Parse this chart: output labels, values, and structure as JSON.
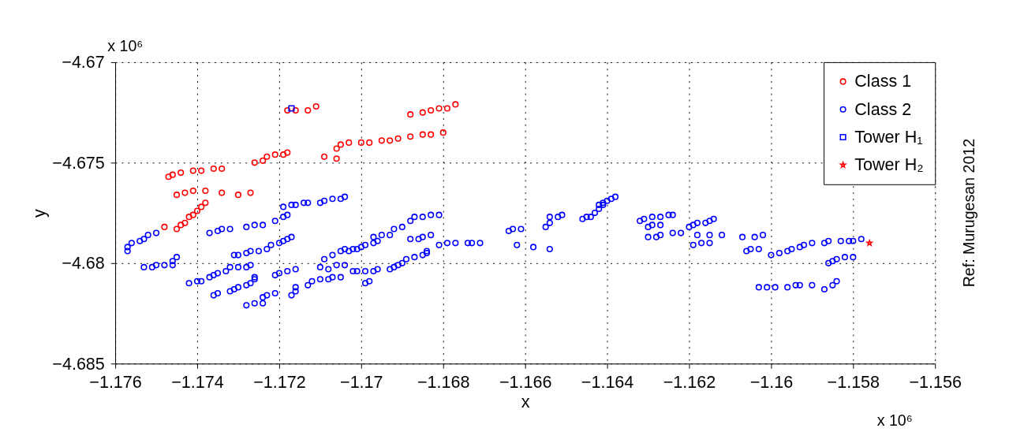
{
  "chart_data": {
    "type": "scatter",
    "xlabel": "x",
    "ylabel": "y",
    "xlim": [
      -1.176,
      -1.156
    ],
    "xticks": [
      -1.176,
      -1.174,
      -1.172,
      -1.17,
      -1.168,
      -1.166,
      -1.164,
      -1.162,
      -1.16,
      -1.158,
      -1.156
    ],
    "ylim": [
      -4.685,
      -4.67
    ],
    "yticks": [
      -4.685,
      -4.68,
      -4.675,
      -4.67
    ],
    "grid": true,
    "legend": "top right",
    "annotations": [
      "x 10⁶",
      "x 10⁶",
      "Ref: Murugesan 2012"
    ],
    "series": [
      {
        "name": "Class 1",
        "color": "#ff0000",
        "marker": "circle",
        "x": [
          -1.1718,
          -1.1716,
          -1.1713,
          -1.1711,
          -1.1688,
          -1.1685,
          -1.1683,
          -1.1681,
          -1.1679,
          -1.1677,
          -1.1726,
          -1.1724,
          -1.1723,
          -1.1721,
          -1.1719,
          -1.1718,
          -1.1709,
          -1.1706,
          -1.1706,
          -1.1705,
          -1.1703,
          -1.17,
          -1.1698,
          -1.1695,
          -1.1693,
          -1.1691,
          -1.1688,
          -1.1685,
          -1.1683,
          -1.168,
          -1.1747,
          -1.1746,
          -1.1744,
          -1.1741,
          -1.1739,
          -1.1736,
          -1.1734,
          -1.1745,
          -1.1743,
          -1.1741,
          -1.1738,
          -1.1734,
          -1.173,
          -1.1727,
          -1.1748,
          -1.1745,
          -1.1744,
          -1.1743,
          -1.1742,
          -1.1741,
          -1.174,
          -1.1739,
          -1.1738
        ],
        "values": [
          -4.6724,
          -4.6724,
          -4.6724,
          -4.6722,
          -4.6726,
          -4.6725,
          -4.6724,
          -4.6723,
          -4.6723,
          -4.6721,
          -4.675,
          -4.6749,
          -4.6747,
          -4.6746,
          -4.6746,
          -4.6745,
          -4.6747,
          -4.6748,
          -4.6743,
          -4.6741,
          -4.674,
          -4.674,
          -4.674,
          -4.6739,
          -4.6739,
          -4.6738,
          -4.6737,
          -4.6736,
          -4.6736,
          -4.6735,
          -4.6757,
          -4.6756,
          -4.6755,
          -4.6754,
          -4.6754,
          -4.6753,
          -4.6753,
          -4.6766,
          -4.6765,
          -4.6764,
          -4.6764,
          -4.6765,
          -4.6766,
          -4.6765,
          -4.6782,
          -4.6783,
          -4.6781,
          -4.678,
          -4.6777,
          -4.6776,
          -4.6774,
          -4.6772,
          -4.677
        ]
      },
      {
        "name": "Class 2",
        "color": "#0000ff",
        "marker": "circle",
        "x": [
          -1.1757,
          -1.1757,
          -1.1756,
          -1.1754,
          -1.1753,
          -1.1752,
          -1.175,
          -1.1753,
          -1.1751,
          -1.175,
          -1.1748,
          -1.1746,
          -1.1746,
          -1.1745,
          -1.1742,
          -1.174,
          -1.1739,
          -1.1737,
          -1.1736,
          -1.1735,
          -1.1733,
          -1.1732,
          -1.173,
          -1.1728,
          -1.1727,
          -1.1736,
          -1.1735,
          -1.1732,
          -1.1731,
          -1.173,
          -1.1728,
          -1.1727,
          -1.1726,
          -1.1726,
          -1.1728,
          -1.1726,
          -1.1724,
          -1.1724,
          -1.1723,
          -1.1721,
          -1.1717,
          -1.1716,
          -1.1716,
          -1.1713,
          -1.1712,
          -1.171,
          -1.1708,
          -1.1707,
          -1.1705,
          -1.1721,
          -1.172,
          -1.1718,
          -1.1716,
          -1.171,
          -1.1708,
          -1.1706,
          -1.1704,
          -1.1702,
          -1.1709,
          -1.1707,
          -1.1705,
          -1.1704,
          -1.1702,
          -1.1731,
          -1.173,
          -1.1728,
          -1.1727,
          -1.1725,
          -1.1723,
          -1.1722,
          -1.172,
          -1.1719,
          -1.1718,
          -1.1717,
          -1.1737,
          -1.1735,
          -1.1734,
          -1.1732,
          -1.1728,
          -1.1726,
          -1.1724,
          -1.1721,
          -1.1719,
          -1.1718,
          -1.1719,
          -1.1717,
          -1.1716,
          -1.1714,
          -1.1713,
          -1.171,
          -1.1709,
          -1.1707,
          -1.1705,
          -1.1704,
          -1.1703,
          -1.1701,
          -1.17,
          -1.1699,
          -1.1697,
          -1.1697,
          -1.1696,
          -1.1695,
          -1.1693,
          -1.1692,
          -1.169,
          -1.1688,
          -1.1687,
          -1.1685,
          -1.1683,
          -1.1681,
          -1.1688,
          -1.1686,
          -1.1685,
          -1.1683,
          -1.1701,
          -1.1699,
          -1.1697,
          -1.1696,
          -1.1693,
          -1.1692,
          -1.1691,
          -1.169,
          -1.1689,
          -1.1687,
          -1.1685,
          -1.1684,
          -1.1684,
          -1.1699,
          -1.1698,
          -1.1681,
          -1.1679,
          -1.1677,
          -1.1674,
          -1.1673,
          -1.1671,
          -1.1664,
          -1.1663,
          -1.1661,
          -1.1662,
          -1.1658,
          -1.1654,
          -1.1655,
          -1.1654,
          -1.1654,
          -1.1652,
          -1.1651,
          -1.1646,
          -1.1645,
          -1.1644,
          -1.1643,
          -1.1642,
          -1.1642,
          -1.1641,
          -1.1641,
          -1.164,
          -1.1639,
          -1.1638,
          -1.1632,
          -1.1631,
          -1.1629,
          -1.1627,
          -1.1625,
          -1.1624,
          -1.163,
          -1.1629,
          -1.1627,
          -1.163,
          -1.1628,
          -1.1627,
          -1.1624,
          -1.1622,
          -1.162,
          -1.1619,
          -1.1618,
          -1.1616,
          -1.1615,
          -1.1614,
          -1.1618,
          -1.1615,
          -1.1612,
          -1.1619,
          -1.1617,
          -1.1615,
          -1.1607,
          -1.1604,
          -1.1602,
          -1.1606,
          -1.1605,
          -1.1603,
          -1.16,
          -1.1598,
          -1.1596,
          -1.1595,
          -1.1593,
          -1.1592,
          -1.159,
          -1.1587,
          -1.1586,
          -1.1583,
          -1.1581,
          -1.158,
          -1.1578,
          -1.1586,
          -1.1585,
          -1.1584,
          -1.1582,
          -1.158,
          -1.1603,
          -1.1601,
          -1.1599,
          -1.1596,
          -1.1594,
          -1.1593,
          -1.159,
          -1.1587,
          -1.1585,
          -1.1584
        ],
        "values": [
          -4.6794,
          -4.6792,
          -4.679,
          -4.6789,
          -4.6788,
          -4.6786,
          -4.6785,
          -4.6802,
          -4.6802,
          -4.6801,
          -4.6801,
          -4.6801,
          -4.6799,
          -4.6797,
          -4.681,
          -4.6809,
          -4.6809,
          -4.6807,
          -4.6806,
          -4.6805,
          -4.6804,
          -4.6802,
          -4.6802,
          -4.6802,
          -4.6801,
          -4.6816,
          -4.6815,
          -4.6814,
          -4.6813,
          -4.6812,
          -4.6811,
          -4.681,
          -4.6808,
          -4.6807,
          -4.6821,
          -4.682,
          -4.682,
          -4.6817,
          -4.6816,
          -4.6815,
          -4.6816,
          -4.6814,
          -4.6812,
          -4.6811,
          -4.6809,
          -4.6808,
          -4.6808,
          -4.6807,
          -4.6807,
          -4.6806,
          -4.6805,
          -4.6804,
          -4.6803,
          -4.6802,
          -4.6803,
          -4.6801,
          -4.6801,
          -4.6804,
          -4.6798,
          -4.6796,
          -4.6794,
          -4.6793,
          -4.6793,
          -4.6796,
          -4.6796,
          -4.6795,
          -4.6794,
          -4.6794,
          -4.6793,
          -4.6791,
          -4.679,
          -4.6789,
          -4.6788,
          -4.6787,
          -4.6785,
          -4.6784,
          -4.6783,
          -4.6783,
          -4.6782,
          -4.6781,
          -4.6781,
          -4.6779,
          -4.6777,
          -4.6776,
          -4.6772,
          -4.6771,
          -4.6771,
          -4.677,
          -4.677,
          -4.677,
          -4.6769,
          -4.6768,
          -4.6768,
          -4.6767,
          -4.6794,
          -4.6793,
          -4.6792,
          -4.6791,
          -4.679,
          -4.6787,
          -4.6789,
          -4.6786,
          -4.6786,
          -4.6783,
          -4.6782,
          -4.6779,
          -4.6777,
          -4.6777,
          -4.6776,
          -4.6776,
          -4.6788,
          -4.6788,
          -4.6787,
          -4.6786,
          -4.6804,
          -4.6804,
          -4.6804,
          -4.6803,
          -4.6803,
          -4.6802,
          -4.6801,
          -4.68,
          -4.6798,
          -4.6797,
          -4.6796,
          -4.6795,
          -4.6794,
          -4.681,
          -4.6809,
          -4.6791,
          -4.679,
          -4.679,
          -4.679,
          -4.679,
          -4.679,
          -4.6784,
          -4.6783,
          -4.6783,
          -4.6791,
          -4.6792,
          -4.6793,
          -4.6782,
          -4.678,
          -4.6777,
          -4.6777,
          -4.6776,
          -4.6778,
          -4.6777,
          -4.6777,
          -4.6775,
          -4.6773,
          -4.6771,
          -4.6771,
          -4.677,
          -4.6769,
          -4.6768,
          -4.6767,
          -4.6779,
          -4.6778,
          -4.6777,
          -4.6777,
          -4.6776,
          -4.6776,
          -4.6782,
          -4.6781,
          -4.6781,
          -4.6787,
          -4.6787,
          -4.6786,
          -4.6785,
          -4.6785,
          -4.6782,
          -4.6781,
          -4.678,
          -4.678,
          -4.6779,
          -4.6778,
          -4.6786,
          -4.6786,
          -4.6786,
          -4.6791,
          -4.679,
          -4.679,
          -4.6787,
          -4.6787,
          -4.6786,
          -4.6794,
          -4.6793,
          -4.6793,
          -4.6796,
          -4.6795,
          -4.6794,
          -4.6793,
          -4.6792,
          -4.6791,
          -4.679,
          -4.679,
          -4.6789,
          -4.6789,
          -4.6789,
          -4.6789,
          -4.6788,
          -4.68,
          -4.6799,
          -4.6798,
          -4.6797,
          -4.6797,
          -4.6812,
          -4.6812,
          -4.6812,
          -4.6812,
          -4.6811,
          -4.6811,
          -4.6811,
          -4.6813,
          -4.6811,
          -4.6809
        ]
      },
      {
        "name": "Tower H₁",
        "color": "#0000ff",
        "marker": "square",
        "x": [
          -1.1717
        ],
        "values": [
          -4.6723
        ]
      },
      {
        "name": "Tower H₂",
        "color": "#ff0000",
        "marker": "star",
        "x": [
          -1.1576
        ],
        "values": [
          -4.679
        ]
      }
    ]
  }
}
